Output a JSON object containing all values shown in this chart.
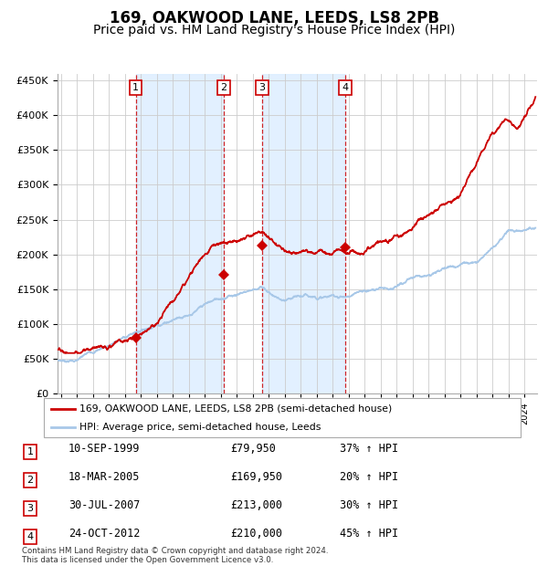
{
  "title": "169, OAKWOOD LANE, LEEDS, LS8 2PB",
  "subtitle": "Price paid vs. HM Land Registry's House Price Index (HPI)",
  "title_fontsize": 12,
  "subtitle_fontsize": 10,
  "background_color": "#ffffff",
  "grid_color": "#cccccc",
  "hpi_line_color": "#a8c8e8",
  "price_line_color": "#cc0000",
  "shade_color": "#ddeeff",
  "vline_color": "#cc0000",
  "marker_color": "#cc0000",
  "legend_label_price": "169, OAKWOOD LANE, LEEDS, LS8 2PB (semi-detached house)",
  "legend_label_hpi": "HPI: Average price, semi-detached house, Leeds",
  "footnote": "Contains HM Land Registry data © Crown copyright and database right 2024.\nThis data is licensed under the Open Government Licence v3.0.",
  "transactions": [
    {
      "num": 1,
      "date": "10-SEP-1999",
      "price": 79950,
      "price_str": "£79,950",
      "hpi_pct": "37% ↑ HPI",
      "x_year": 1999.7
    },
    {
      "num": 2,
      "date": "18-MAR-2005",
      "price": 169950,
      "price_str": "£169,950",
      "hpi_pct": "20% ↑ HPI",
      "x_year": 2005.2
    },
    {
      "num": 3,
      "date": "30-JUL-2007",
      "price": 213000,
      "price_str": "£213,000",
      "hpi_pct": "30% ↑ HPI",
      "x_year": 2007.6
    },
    {
      "num": 4,
      "date": "24-OCT-2012",
      "price": 210000,
      "price_str": "£210,000",
      "hpi_pct": "45% ↑ HPI",
      "x_year": 2012.8
    }
  ],
  "ylim": [
    0,
    460000
  ],
  "yticks": [
    0,
    50000,
    100000,
    150000,
    200000,
    250000,
    300000,
    350000,
    400000,
    450000
  ],
  "xlim_start": 1994.8,
  "xlim_end": 2024.8
}
